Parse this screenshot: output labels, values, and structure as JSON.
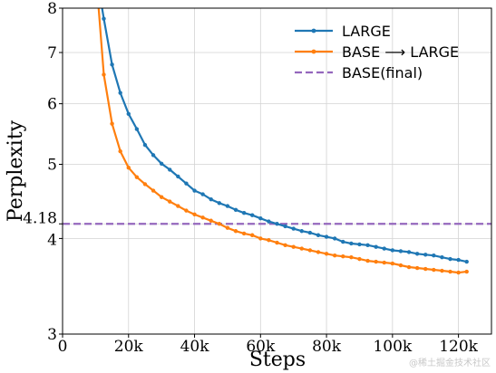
{
  "chart_data": {
    "type": "line",
    "xlabel": "Steps",
    "ylabel": "Perplexity",
    "xlim": [
      0,
      130000
    ],
    "ylim": [
      3,
      8
    ],
    "y_scale": "log",
    "grid": true,
    "legend_position": "top-right",
    "x_ticks": [
      {
        "value": 0,
        "label": "0"
      },
      {
        "value": 20000,
        "label": "20k"
      },
      {
        "value": 40000,
        "label": "40k"
      },
      {
        "value": 60000,
        "label": "60k"
      },
      {
        "value": 80000,
        "label": "80k"
      },
      {
        "value": 100000,
        "label": "100k"
      },
      {
        "value": 120000,
        "label": "120k"
      }
    ],
    "y_ticks": [
      {
        "value": 3,
        "label": "3"
      },
      {
        "value": 4,
        "label": "4"
      },
      {
        "value": 4.18,
        "label": "4.18"
      },
      {
        "value": 5,
        "label": "5"
      },
      {
        "value": 6,
        "label": "6"
      },
      {
        "value": 7,
        "label": "7"
      },
      {
        "value": 8,
        "label": "8"
      }
    ],
    "series": [
      {
        "name": "LARGE",
        "color": "#1f77b4",
        "style": "line-markers",
        "x": [
          10000,
          12500,
          15000,
          17500,
          20000,
          22500,
          25000,
          27500,
          30000,
          32500,
          35000,
          37500,
          40000,
          42500,
          45000,
          47500,
          50000,
          52500,
          55000,
          57500,
          60000,
          62500,
          65000,
          67500,
          70000,
          72500,
          75000,
          77500,
          80000,
          82500,
          85000,
          87500,
          90000,
          92500,
          95000,
          97500,
          100000,
          102500,
          105000,
          107500,
          110000,
          112500,
          115000,
          117500,
          120000,
          122500
        ],
        "y": [
          9.0,
          7.75,
          6.75,
          6.2,
          5.82,
          5.56,
          5.3,
          5.14,
          5.01,
          4.92,
          4.82,
          4.72,
          4.62,
          4.57,
          4.5,
          4.45,
          4.41,
          4.36,
          4.32,
          4.29,
          4.25,
          4.21,
          4.18,
          4.15,
          4.12,
          4.09,
          4.07,
          4.04,
          4.02,
          4.0,
          3.96,
          3.94,
          3.93,
          3.92,
          3.9,
          3.88,
          3.86,
          3.85,
          3.84,
          3.82,
          3.81,
          3.8,
          3.78,
          3.76,
          3.75,
          3.73
        ]
      },
      {
        "name": "BASE ⟶ LARGE",
        "color": "#ff7f0e",
        "style": "line-markers",
        "x": [
          10000,
          12500,
          15000,
          17500,
          20000,
          22500,
          25000,
          27500,
          30000,
          32500,
          35000,
          37500,
          40000,
          42500,
          45000,
          47500,
          50000,
          52500,
          55000,
          57500,
          60000,
          62500,
          65000,
          67500,
          70000,
          72500,
          75000,
          77500,
          80000,
          82500,
          85000,
          87500,
          90000,
          92500,
          95000,
          97500,
          100000,
          102500,
          105000,
          107500,
          110000,
          112500,
          115000,
          117500,
          120000,
          122500
        ],
        "y": [
          9.0,
          6.55,
          5.65,
          5.2,
          4.95,
          4.81,
          4.71,
          4.62,
          4.53,
          4.47,
          4.41,
          4.35,
          4.3,
          4.26,
          4.22,
          4.18,
          4.13,
          4.09,
          4.06,
          4.04,
          4.0,
          3.98,
          3.95,
          3.92,
          3.9,
          3.88,
          3.86,
          3.84,
          3.82,
          3.8,
          3.79,
          3.78,
          3.76,
          3.74,
          3.73,
          3.72,
          3.71,
          3.69,
          3.67,
          3.66,
          3.65,
          3.64,
          3.63,
          3.62,
          3.61,
          3.62
        ]
      },
      {
        "name": "BASE(final)",
        "color": "#9467bd",
        "style": "dashed-hline",
        "x": [
          0,
          130000
        ],
        "y": [
          4.18,
          4.18
        ]
      }
    ]
  },
  "watermark": "@稀土掘金技术社区"
}
